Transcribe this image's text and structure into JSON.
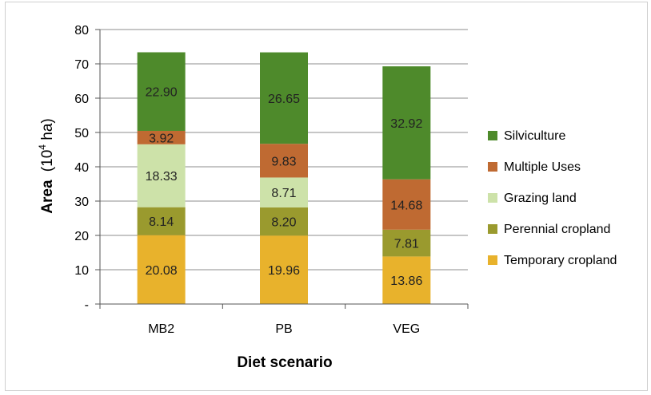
{
  "chart_data": {
    "type": "bar",
    "stacked": true,
    "categories": [
      "MB2",
      "PB",
      "VEG"
    ],
    "series": [
      {
        "name": "Temporary cropland",
        "color": "#e8b22c",
        "values": [
          20.08,
          19.96,
          13.86
        ],
        "labels": [
          "20.08",
          "19.96",
          "13.86"
        ]
      },
      {
        "name": "Perennial cropland",
        "color": "#9a9a2e",
        "values": [
          8.14,
          8.2,
          7.81
        ],
        "labels": [
          "8.14",
          "8.20",
          "7.81"
        ]
      },
      {
        "name": "Grazing land",
        "color": "#cde2a9",
        "values": [
          18.33,
          8.71,
          0
        ],
        "labels": [
          "18.33",
          "8.71",
          ""
        ]
      },
      {
        "name": "Multiple Uses",
        "color": "#bf6a32",
        "values": [
          3.92,
          9.83,
          14.68
        ],
        "labels": [
          "3.92",
          "9.83",
          "14.68"
        ]
      },
      {
        "name": "Silviculture",
        "color": "#4e8a2b",
        "values": [
          22.9,
          26.65,
          32.92
        ],
        "labels": [
          "22.90",
          "26.65",
          "32.92"
        ]
      }
    ],
    "legend_order": [
      "Silviculture",
      "Multiple Uses",
      "Grazing land",
      "Perennial cropland",
      "Temporary cropland"
    ],
    "legend_position": "right",
    "yticks": [
      "-",
      "10",
      "20",
      "30",
      "40",
      "50",
      "60",
      "70",
      "80"
    ],
    "ylim": [
      0,
      80
    ],
    "ylabel_main": "Area",
    "ylabel_unit_pre": "(10",
    "ylabel_unit_sup": "4",
    "ylabel_unit_post": " ha)",
    "xlabel": "Diet scenario",
    "grid": true
  }
}
